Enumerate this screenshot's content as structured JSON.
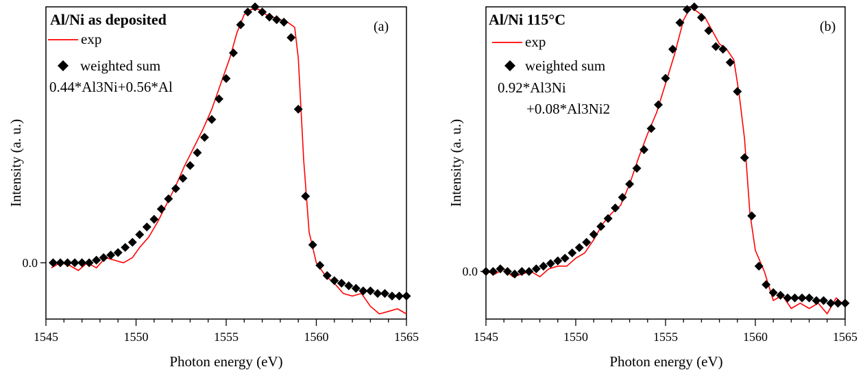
{
  "chart_data": [
    {
      "type": "line",
      "title": "Al/Ni as deposited",
      "panel_label": "(a)",
      "xlabel": "Photon energy (eV)",
      "ylabel": "Intensity (a. u.)",
      "xlim": [
        1545,
        1565
      ],
      "ylim": [
        -0.22,
        1.0
      ],
      "x_ticks": [
        1545,
        1550,
        1555,
        1560,
        1565
      ],
      "x_tick_labels": [
        "1545",
        "1550",
        "1555",
        "1560",
        "1565"
      ],
      "y_ticks": [
        0.0
      ],
      "y_tick_labels": [
        "0.0"
      ],
      "grid": false,
      "legend_position": "top-left",
      "annotation": "0.44*Al3Ni+0.56*Al",
      "series": [
        {
          "name": "exp",
          "style": "line",
          "color": "#ff0000",
          "x": [
            1545.3,
            1545.8,
            1546.3,
            1546.8,
            1547.3,
            1547.8,
            1548.3,
            1548.8,
            1549.3,
            1549.8,
            1550.2,
            1550.7,
            1551.2,
            1551.7,
            1552.2,
            1552.7,
            1553.2,
            1553.7,
            1554.2,
            1554.7,
            1555.2,
            1555.6,
            1556.0,
            1556.4,
            1556.8,
            1557.2,
            1557.6,
            1558.0,
            1558.4,
            1558.8,
            1559.0,
            1559.3,
            1559.6,
            1560.0,
            1560.5,
            1561.0,
            1561.5,
            1562.0,
            1562.5,
            1563.0,
            1563.5,
            1564.0,
            1564.5,
            1565.0
          ],
          "y": [
            -0.02,
            0.0,
            -0.01,
            -0.03,
            0.0,
            -0.02,
            0.02,
            0.01,
            0.0,
            0.02,
            0.06,
            0.1,
            0.16,
            0.23,
            0.3,
            0.38,
            0.45,
            0.52,
            0.6,
            0.7,
            0.8,
            0.9,
            0.97,
            0.99,
            0.99,
            0.97,
            0.96,
            0.95,
            0.94,
            0.92,
            0.8,
            0.4,
            0.12,
            0.0,
            -0.05,
            -0.08,
            -0.12,
            -0.13,
            -0.12,
            -0.17,
            -0.2,
            -0.19,
            -0.18,
            -0.2
          ]
        },
        {
          "name": "weighted sum",
          "style": "diamond",
          "color": "#000000",
          "x": [
            1545.4,
            1545.8,
            1546.2,
            1546.6,
            1547.0,
            1547.4,
            1547.8,
            1548.2,
            1548.6,
            1549.0,
            1549.4,
            1549.8,
            1550.2,
            1550.6,
            1551.0,
            1551.4,
            1551.8,
            1552.2,
            1552.6,
            1553.0,
            1553.4,
            1553.8,
            1554.2,
            1554.6,
            1555.0,
            1555.4,
            1555.8,
            1556.2,
            1556.6,
            1557.0,
            1557.4,
            1557.8,
            1558.2,
            1558.6,
            1559.0,
            1559.4,
            1559.8,
            1560.2,
            1560.6,
            1561.0,
            1561.4,
            1561.8,
            1562.2,
            1562.6,
            1563.0,
            1563.4,
            1563.8,
            1564.2,
            1564.6,
            1565.0
          ],
          "y": [
            0.0,
            0.0,
            0.0,
            0.0,
            0.0,
            0.0,
            0.01,
            0.02,
            0.03,
            0.04,
            0.06,
            0.08,
            0.11,
            0.14,
            0.17,
            0.21,
            0.25,
            0.29,
            0.33,
            0.38,
            0.43,
            0.49,
            0.56,
            0.64,
            0.72,
            0.82,
            0.93,
            0.98,
            1.0,
            0.98,
            0.96,
            0.95,
            0.94,
            0.88,
            0.6,
            0.26,
            0.07,
            -0.01,
            -0.05,
            -0.07,
            -0.08,
            -0.09,
            -0.1,
            -0.11,
            -0.11,
            -0.12,
            -0.12,
            -0.13,
            -0.13,
            -0.13
          ]
        }
      ]
    },
    {
      "type": "line",
      "title": "Al/Ni  115°C",
      "panel_label": "(b)",
      "xlabel": "Photon energy (eV)",
      "ylabel": "Intensity (a. u.)",
      "xlim": [
        1545,
        1565
      ],
      "ylim": [
        -0.18,
        1.0
      ],
      "x_ticks": [
        1545,
        1550,
        1555,
        1560,
        1565
      ],
      "x_tick_labels": [
        "1545",
        "1550",
        "1555",
        "1560",
        "1565"
      ],
      "y_ticks": [
        0.0
      ],
      "y_tick_labels": [
        "0.0"
      ],
      "grid": false,
      "legend_position": "top-left",
      "annotation": "0.92*Al3Ni",
      "annotation2": "+0.08*Al3Ni2",
      "series": [
        {
          "name": "exp",
          "style": "line",
          "color": "#ff0000",
          "x": [
            1545.0,
            1545.5,
            1546.0,
            1546.5,
            1547.0,
            1547.5,
            1548.0,
            1548.5,
            1549.0,
            1549.5,
            1550.0,
            1550.5,
            1551.0,
            1551.5,
            1552.0,
            1552.5,
            1553.0,
            1553.5,
            1554.0,
            1554.5,
            1555.0,
            1555.5,
            1556.0,
            1556.4,
            1556.8,
            1557.2,
            1557.6,
            1558.0,
            1558.4,
            1558.8,
            1559.1,
            1559.4,
            1559.7,
            1560.0,
            1560.5,
            1561.0,
            1561.5,
            1562.0,
            1562.5,
            1563.0,
            1563.5,
            1564.0,
            1564.5,
            1565.0
          ],
          "y": [
            0.0,
            -0.01,
            0.01,
            -0.02,
            -0.01,
            0.0,
            -0.02,
            0.01,
            0.02,
            0.02,
            0.05,
            0.07,
            0.12,
            0.18,
            0.22,
            0.25,
            0.33,
            0.43,
            0.52,
            0.6,
            0.71,
            0.82,
            0.95,
            1.0,
            0.98,
            0.96,
            0.91,
            0.86,
            0.84,
            0.8,
            0.67,
            0.5,
            0.22,
            0.08,
            0.0,
            -0.11,
            -0.09,
            -0.14,
            -0.12,
            -0.14,
            -0.12,
            -0.16,
            -0.1,
            -0.13
          ]
        },
        {
          "name": "weighted sum",
          "style": "diamond",
          "color": "#000000",
          "x": [
            1545.0,
            1545.4,
            1545.8,
            1546.2,
            1546.6,
            1547.0,
            1547.4,
            1547.8,
            1548.2,
            1548.6,
            1549.0,
            1549.4,
            1549.8,
            1550.2,
            1550.6,
            1551.0,
            1551.4,
            1551.8,
            1552.2,
            1552.6,
            1553.0,
            1553.4,
            1553.8,
            1554.2,
            1554.6,
            1555.0,
            1555.4,
            1555.8,
            1556.2,
            1556.6,
            1557.0,
            1557.4,
            1557.8,
            1558.2,
            1558.6,
            1559.0,
            1559.4,
            1559.8,
            1560.2,
            1560.6,
            1561.0,
            1561.4,
            1561.8,
            1562.2,
            1562.6,
            1563.0,
            1563.4,
            1563.8,
            1564.2,
            1564.6,
            1565.0
          ],
          "y": [
            0.0,
            0.0,
            0.01,
            0.0,
            -0.01,
            0.0,
            0.0,
            0.01,
            0.02,
            0.03,
            0.04,
            0.05,
            0.07,
            0.09,
            0.11,
            0.14,
            0.17,
            0.2,
            0.24,
            0.28,
            0.33,
            0.39,
            0.46,
            0.54,
            0.63,
            0.73,
            0.84,
            0.94,
            0.99,
            1.0,
            0.96,
            0.91,
            0.85,
            0.84,
            0.79,
            0.68,
            0.43,
            0.21,
            0.02,
            -0.05,
            -0.08,
            -0.09,
            -0.1,
            -0.1,
            -0.1,
            -0.1,
            -0.11,
            -0.11,
            -0.12,
            -0.12,
            -0.12
          ]
        }
      ]
    }
  ]
}
